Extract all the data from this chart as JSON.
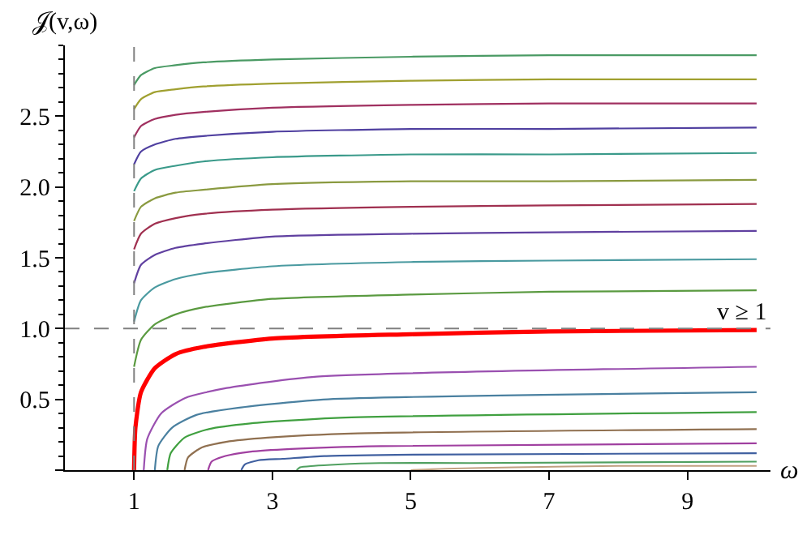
{
  "chart_data": {
    "type": "line",
    "xlabel": "ω",
    "ylabel": "𝒥(v,ω)",
    "xlim": [
      0,
      10.2
    ],
    "xticks": [
      1,
      3,
      5,
      7,
      9
    ],
    "ylim": [
      0,
      3.0
    ],
    "yticks": [
      {
        "value": 0,
        "label": null
      },
      0.5,
      {
        "value": 1.0,
        "label": "1.0"
      },
      1.5,
      {
        "value": 2.0,
        "label": "2.0"
      },
      2.5
    ],
    "marker": "none",
    "line_style": "solid",
    "ref_lines": [
      {
        "axis": "x",
        "value": 1,
        "color": "#808080",
        "line_style": "dashed"
      },
      {
        "axis": "y",
        "value": 1,
        "label": "v ≥ 1",
        "color": "#808080",
        "line_style": "dashed"
      }
    ],
    "series": [
      {
        "color": "#4a9a64",
        "x": [
          1,
          1.1,
          1.3,
          1.6,
          2,
          3,
          5,
          7,
          10
        ],
        "values": [
          2.72,
          2.79,
          2.84,
          2.86,
          2.88,
          2.9,
          2.92,
          2.93,
          2.93
        ]
      },
      {
        "color": "#a0a030",
        "x": [
          1,
          1.1,
          1.3,
          1.6,
          2,
          3,
          5,
          7,
          10
        ],
        "values": [
          2.55,
          2.62,
          2.67,
          2.69,
          2.71,
          2.73,
          2.75,
          2.76,
          2.76
        ]
      },
      {
        "color": "#a03060",
        "x": [
          1,
          1.1,
          1.3,
          1.6,
          2,
          3,
          5,
          7,
          10
        ],
        "values": [
          2.35,
          2.43,
          2.48,
          2.51,
          2.53,
          2.56,
          2.58,
          2.59,
          2.59
        ]
      },
      {
        "color": "#5040a0",
        "x": [
          1,
          1.1,
          1.3,
          1.6,
          2,
          3,
          5,
          7,
          10
        ],
        "values": [
          2.16,
          2.25,
          2.3,
          2.34,
          2.36,
          2.39,
          2.41,
          2.41,
          2.42
        ]
      },
      {
        "color": "#3a9a8a",
        "x": [
          1,
          1.1,
          1.3,
          1.6,
          2,
          3,
          5,
          7,
          10
        ],
        "values": [
          1.97,
          2.06,
          2.12,
          2.15,
          2.18,
          2.21,
          2.23,
          2.23,
          2.24
        ]
      },
      {
        "color": "#8a9a40",
        "x": [
          1,
          1.1,
          1.3,
          1.6,
          2,
          3,
          5,
          7,
          10
        ],
        "values": [
          1.76,
          1.86,
          1.92,
          1.96,
          1.98,
          2.02,
          2.04,
          2.04,
          2.05
        ]
      },
      {
        "color": "#a03050",
        "x": [
          1,
          1.1,
          1.3,
          1.6,
          2,
          3,
          5,
          7,
          10
        ],
        "values": [
          1.56,
          1.67,
          1.74,
          1.78,
          1.81,
          1.84,
          1.86,
          1.87,
          1.88
        ]
      },
      {
        "color": "#6040a0",
        "x": [
          1,
          1.1,
          1.3,
          1.6,
          2,
          3,
          5,
          7,
          10
        ],
        "values": [
          1.32,
          1.45,
          1.52,
          1.57,
          1.6,
          1.65,
          1.67,
          1.68,
          1.69
        ]
      },
      {
        "color": "#4a9aa0",
        "x": [
          1,
          1.1,
          1.3,
          1.6,
          2,
          3,
          5,
          7,
          10
        ],
        "values": [
          1.05,
          1.2,
          1.29,
          1.35,
          1.39,
          1.44,
          1.47,
          1.48,
          1.49
        ]
      },
      {
        "color": "#5a9a40",
        "x": [
          1,
          1.1,
          1.3,
          1.6,
          2,
          3,
          5,
          7,
          10
        ],
        "values": [
          0.73,
          0.92,
          1.03,
          1.1,
          1.15,
          1.21,
          1.24,
          1.26,
          1.27
        ]
      },
      {
        "color": "#ff0000",
        "x": [
          1,
          1.02,
          1.1,
          1.3,
          1.6,
          2,
          3,
          5,
          7,
          10
        ],
        "values": [
          0,
          0.3,
          0.55,
          0.72,
          0.82,
          0.87,
          0.93,
          0.96,
          0.98,
          0.99
        ]
      },
      {
        "color": "#9a50b0",
        "x": [
          1.14,
          1.19,
          1.39,
          1.74,
          2.34,
          3.64,
          10
        ],
        "values": [
          0,
          0.22,
          0.4,
          0.51,
          0.58,
          0.66,
          0.73
        ]
      },
      {
        "color": "#4a80a0",
        "x": [
          1.3,
          1.35,
          1.55,
          1.9,
          2.5,
          3.8,
          10
        ],
        "values": [
          0,
          0.17,
          0.3,
          0.39,
          0.44,
          0.5,
          0.55
        ]
      },
      {
        "color": "#40a040",
        "x": [
          1.48,
          1.53,
          1.73,
          2.08,
          2.68,
          3.98,
          10
        ],
        "values": [
          0,
          0.12,
          0.23,
          0.29,
          0.33,
          0.37,
          0.41
        ]
      },
      {
        "color": "#907050",
        "x": [
          1.73,
          1.78,
          1.98,
          2.33,
          2.93,
          4.23,
          10
        ],
        "values": [
          0,
          0.09,
          0.16,
          0.2,
          0.23,
          0.26,
          0.29
        ]
      },
      {
        "color": "#a040a0",
        "x": [
          2.07,
          2.12,
          2.32,
          2.67,
          3.27,
          4.57,
          10
        ],
        "values": [
          0,
          0.06,
          0.1,
          0.13,
          0.15,
          0.17,
          0.19
        ]
      },
      {
        "color": "#4060a0",
        "x": [
          2.55,
          2.6,
          2.8,
          3.15,
          3.75,
          5.05,
          10
        ],
        "values": [
          0,
          0.04,
          0.07,
          0.08,
          0.1,
          0.11,
          0.12
        ]
      },
      {
        "color": "#50a060",
        "x": [
          3.35,
          3.4,
          3.6,
          3.95,
          4.55,
          5.85,
          10
        ],
        "values": [
          0,
          0.02,
          0.03,
          0.04,
          0.05,
          0.05,
          0.06
        ]
      },
      {
        "color": "#c0a080",
        "x": [
          5,
          5.5,
          6.5,
          8,
          10
        ],
        "values": [
          0,
          0.01,
          0.02,
          0.03,
          0.03
        ]
      }
    ]
  }
}
